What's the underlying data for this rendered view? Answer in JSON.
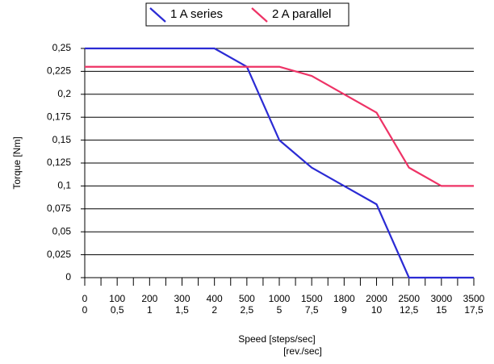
{
  "chart_data": {
    "type": "line",
    "categories": [
      "0",
      "100",
      "200",
      "300",
      "400",
      "500",
      "1000",
      "1500",
      "1800",
      "2000",
      "2500",
      "3000",
      "3500"
    ],
    "categories2": [
      "0",
      "0,5",
      "1",
      "1,5",
      "2",
      "2,5",
      "5",
      "7,5",
      "9",
      "10",
      "12,5",
      "15",
      "17,5"
    ],
    "x_label": "Speed [steps/sec]",
    "x_label2": "[rev./sec]",
    "y_label": "Torque [Nm]",
    "series": [
      {
        "name": "1 A series",
        "color": "#2b2bd4",
        "values": [
          0.25,
          0.25,
          0.25,
          0.25,
          0.25,
          0.23,
          0.15,
          0.12,
          0.1,
          0.08,
          0,
          0,
          0
        ]
      },
      {
        "name": "2 A parallel",
        "color": "#ee3366",
        "values": [
          0.23,
          0.23,
          0.23,
          0.23,
          0.23,
          0.23,
          0.23,
          0.22,
          0.2,
          0.18,
          0.12,
          0.1,
          0.1
        ]
      }
    ],
    "ylim": [
      0,
      0.25
    ],
    "yticks": [
      0,
      {
        "value": 0.025,
        "label": "0,025"
      },
      {
        "value": 0.05,
        "label": "0,05"
      },
      {
        "value": 0.075,
        "label": "0,075"
      },
      {
        "value": 0.1,
        "label": "0,1"
      },
      {
        "value": 0.125,
        "label": "0,125"
      },
      {
        "value": 0.15,
        "label": "0,15"
      },
      {
        "value": 0.175,
        "label": "0,175"
      },
      {
        "value": 0.2,
        "label": "0,2"
      },
      {
        "value": 0.225,
        "label": "0,225"
      },
      {
        "value": 0.25,
        "label": "0,25"
      }
    ],
    "grid": true,
    "legend": "top"
  }
}
